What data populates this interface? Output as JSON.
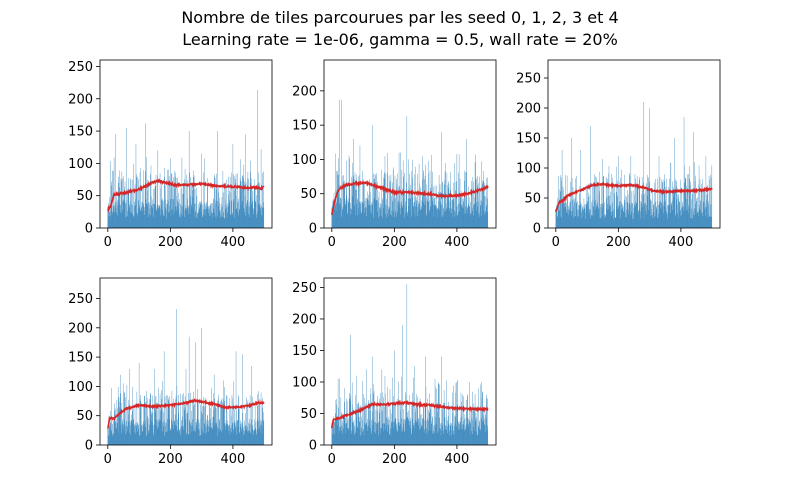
{
  "title_line1": "Nombre de tiles parcourues par les seed 0, 1, 2, 3 et 4",
  "title_line2": "Learning rate = 1e-06, gamma = 0.5, wall rate = 20%",
  "colors": {
    "bars": "#1f77b4",
    "average_line": "#d62728",
    "axes": "#000000"
  },
  "chart_data": [
    {
      "type": "bar",
      "seed": 0,
      "xlim": [
        -25,
        525
      ],
      "ylim": [
        0,
        260
      ],
      "xticks": [
        0,
        200,
        400
      ],
      "yticks": [
        0,
        50,
        100,
        150,
        200,
        250
      ],
      "n_episodes": 500,
      "bar_peaks": [
        [
          25,
          145
        ],
        [
          60,
          155
        ],
        [
          90,
          130
        ],
        [
          120,
          162
        ],
        [
          160,
          120
        ],
        [
          200,
          108
        ],
        [
          260,
          150
        ],
        [
          300,
          115
        ],
        [
          350,
          150
        ],
        [
          400,
          130
        ],
        [
          440,
          145
        ],
        [
          478,
          214
        ],
        [
          490,
          122
        ]
      ],
      "bar_base": 60,
      "avg_line": [
        [
          0,
          28
        ],
        [
          10,
          35
        ],
        [
          20,
          52
        ],
        [
          50,
          54
        ],
        [
          100,
          60
        ],
        [
          140,
          70
        ],
        [
          160,
          73
        ],
        [
          190,
          70
        ],
        [
          210,
          66
        ],
        [
          250,
          67
        ],
        [
          300,
          68
        ],
        [
          350,
          65
        ],
        [
          400,
          64
        ],
        [
          450,
          62
        ],
        [
          480,
          63
        ],
        [
          490,
          61
        ],
        [
          499,
          64
        ]
      ]
    },
    {
      "type": "bar",
      "seed": 1,
      "xlim": [
        -25,
        525
      ],
      "ylim": [
        0,
        245
      ],
      "xticks": [
        0,
        200,
        400
      ],
      "yticks": [
        0,
        50,
        100,
        150,
        200
      ],
      "n_episodes": 500,
      "bar_peaks": [
        [
          25,
          187
        ],
        [
          32,
          187
        ],
        [
          70,
          130
        ],
        [
          90,
          120
        ],
        [
          130,
          150
        ],
        [
          170,
          105
        ],
        [
          220,
          110
        ],
        [
          240,
          163
        ],
        [
          290,
          105
        ],
        [
          350,
          140
        ],
        [
          400,
          108
        ],
        [
          430,
          130
        ],
        [
          460,
          107
        ]
      ],
      "bar_base": 55,
      "avg_line": [
        [
          0,
          20
        ],
        [
          10,
          40
        ],
        [
          20,
          55
        ],
        [
          40,
          62
        ],
        [
          80,
          65
        ],
        [
          110,
          66
        ],
        [
          150,
          60
        ],
        [
          200,
          52
        ],
        [
          250,
          52
        ],
        [
          300,
          50
        ],
        [
          350,
          47
        ],
        [
          400,
          47
        ],
        [
          450,
          52
        ],
        [
          490,
          58
        ],
        [
          499,
          60
        ]
      ]
    },
    {
      "type": "bar",
      "seed": 2,
      "xlim": [
        -25,
        525
      ],
      "ylim": [
        0,
        280
      ],
      "xticks": [
        0,
        200,
        400
      ],
      "yticks": [
        0,
        50,
        100,
        150,
        200,
        250
      ],
      "n_episodes": 500,
      "bar_peaks": [
        [
          20,
          130
        ],
        [
          50,
          150
        ],
        [
          80,
          130
        ],
        [
          110,
          170
        ],
        [
          150,
          115
        ],
        [
          200,
          120
        ],
        [
          240,
          120
        ],
        [
          280,
          210
        ],
        [
          300,
          200
        ],
        [
          330,
          120
        ],
        [
          380,
          150
        ],
        [
          410,
          185
        ],
        [
          440,
          160
        ],
        [
          480,
          120
        ]
      ],
      "bar_base": 60,
      "avg_line": [
        [
          0,
          28
        ],
        [
          10,
          42
        ],
        [
          20,
          45
        ],
        [
          40,
          55
        ],
        [
          80,
          63
        ],
        [
          120,
          72
        ],
        [
          150,
          73
        ],
        [
          200,
          70
        ],
        [
          240,
          72
        ],
        [
          280,
          68
        ],
        [
          310,
          62
        ],
        [
          350,
          60
        ],
        [
          400,
          62
        ],
        [
          450,
          62
        ],
        [
          480,
          64
        ],
        [
          499,
          65
        ]
      ]
    },
    {
      "type": "bar",
      "seed": 3,
      "xlim": [
        -25,
        525
      ],
      "ylim": [
        0,
        285
      ],
      "xticks": [
        0,
        200,
        400
      ],
      "yticks": [
        0,
        50,
        100,
        150,
        200,
        250
      ],
      "n_episodes": 500,
      "bar_peaks": [
        [
          5,
          135
        ],
        [
          40,
          120
        ],
        [
          70,
          130
        ],
        [
          100,
          140
        ],
        [
          150,
          130
        ],
        [
          180,
          160
        ],
        [
          220,
          232
        ],
        [
          250,
          130
        ],
        [
          260,
          185
        ],
        [
          280,
          175
        ],
        [
          300,
          200
        ],
        [
          340,
          120
        ],
        [
          370,
          110
        ],
        [
          410,
          160
        ],
        [
          430,
          155
        ],
        [
          460,
          135
        ],
        [
          490,
          90
        ]
      ],
      "bar_base": 60,
      "avg_line": [
        [
          0,
          28
        ],
        [
          5,
          45
        ],
        [
          20,
          45
        ],
        [
          40,
          55
        ],
        [
          60,
          62
        ],
        [
          100,
          68
        ],
        [
          150,
          66
        ],
        [
          200,
          68
        ],
        [
          250,
          72
        ],
        [
          280,
          76
        ],
        [
          300,
          74
        ],
        [
          340,
          70
        ],
        [
          370,
          65
        ],
        [
          400,
          64
        ],
        [
          450,
          67
        ],
        [
          480,
          72
        ],
        [
          499,
          72
        ]
      ]
    },
    {
      "type": "bar",
      "seed": 4,
      "xlim": [
        -25,
        525
      ],
      "ylim": [
        0,
        265
      ],
      "xticks": [
        0,
        200,
        400
      ],
      "yticks": [
        0,
        50,
        100,
        150,
        200,
        250
      ],
      "n_episodes": 500,
      "bar_peaks": [
        [
          5,
          130
        ],
        [
          20,
          105
        ],
        [
          40,
          90
        ],
        [
          60,
          175
        ],
        [
          80,
          110
        ],
        [
          110,
          120
        ],
        [
          130,
          140
        ],
        [
          160,
          120
        ],
        [
          200,
          150
        ],
        [
          225,
          190
        ],
        [
          240,
          255
        ],
        [
          265,
          125
        ],
        [
          300,
          140
        ],
        [
          330,
          105
        ],
        [
          350,
          140
        ],
        [
          400,
          100
        ],
        [
          440,
          100
        ],
        [
          470,
          90
        ]
      ],
      "bar_base": 55,
      "avg_line": [
        [
          0,
          28
        ],
        [
          5,
          40
        ],
        [
          20,
          42
        ],
        [
          50,
          48
        ],
        [
          80,
          53
        ],
        [
          110,
          60
        ],
        [
          130,
          65
        ],
        [
          170,
          64
        ],
        [
          200,
          66
        ],
        [
          240,
          67
        ],
        [
          280,
          64
        ],
        [
          320,
          63
        ],
        [
          360,
          60
        ],
        [
          400,
          58
        ],
        [
          450,
          57
        ],
        [
          499,
          57
        ]
      ]
    }
  ]
}
